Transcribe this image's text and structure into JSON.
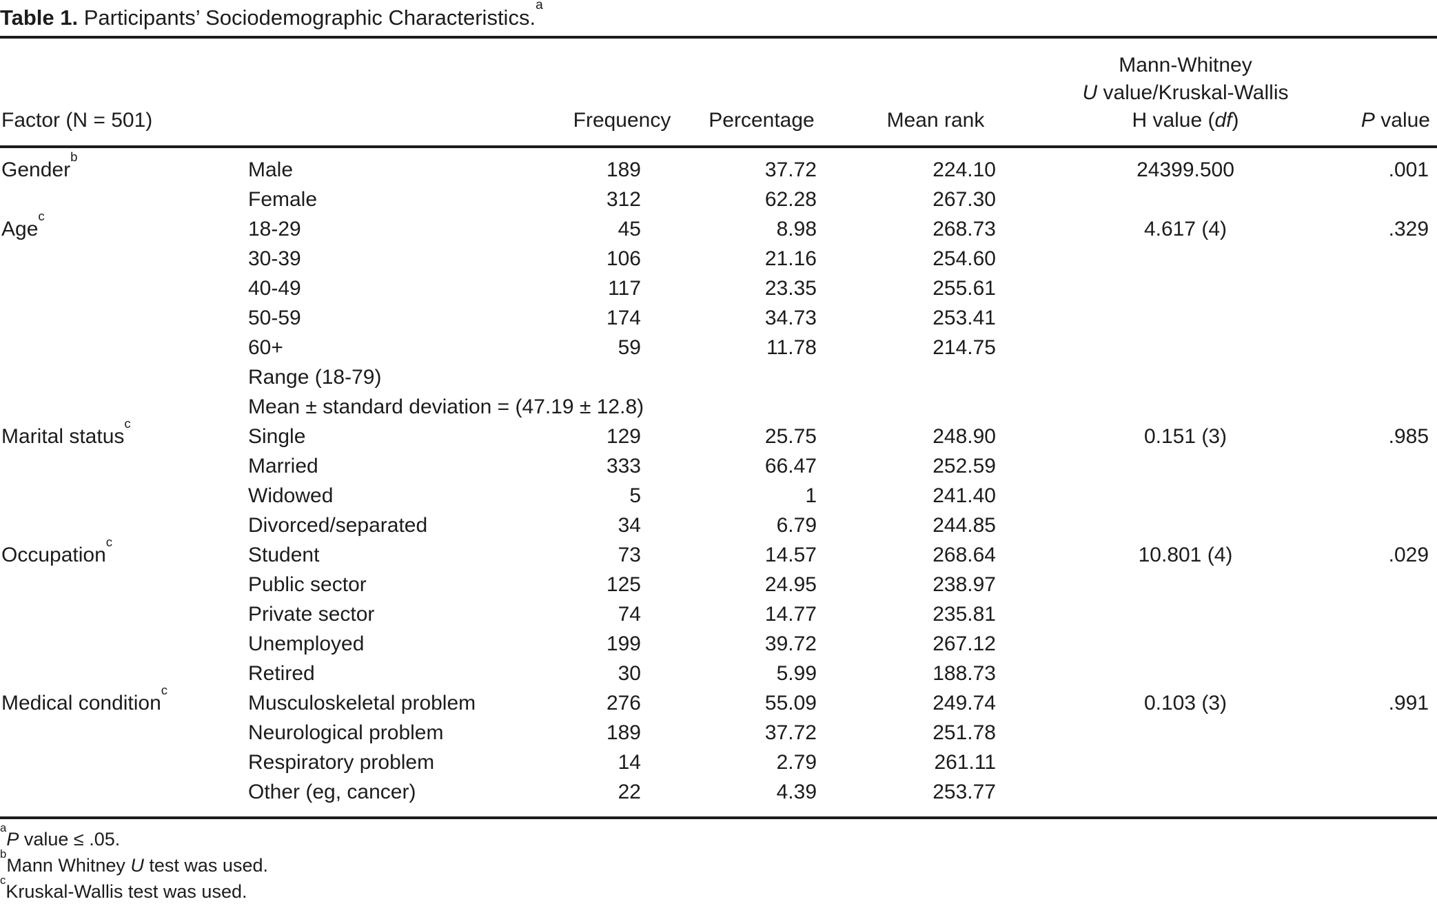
{
  "title": {
    "label": "Table 1.",
    "text": " Participants’ Sociodemographic Characteristics.",
    "footnote_marker": "a"
  },
  "table": {
    "headers": {
      "factor": "Factor (N = 501)",
      "frequency": "Frequency",
      "percentage": "Percentage",
      "mean_rank": "Mean rank",
      "test_line1": "Mann-Whitney",
      "test_line2_italic": "U",
      "test_line2_rest": " value/Kruskal-Wallis",
      "test_line3_pre": "H value (",
      "test_line3_italic": "df",
      "test_line3_post": ")",
      "p_italic": "P",
      "p_rest": " value"
    },
    "rows": [
      {
        "factor": "Gender",
        "factor_sup": "b",
        "category": "Male",
        "frequency": "189",
        "percentage": "37.72",
        "mean_rank": "224.10",
        "test": "24399.500",
        "p_value": ".001"
      },
      {
        "factor": "",
        "factor_sup": "",
        "category": "Female",
        "frequency": "312",
        "percentage": "62.28",
        "mean_rank": "267.30",
        "test": "",
        "p_value": ""
      },
      {
        "factor": "Age",
        "factor_sup": "c",
        "category": "18-29",
        "frequency": "45",
        "percentage": "8.98",
        "mean_rank": "268.73",
        "test": "4.617 (4)",
        "p_value": ".329"
      },
      {
        "factor": "",
        "factor_sup": "",
        "category": "30-39",
        "frequency": "106",
        "percentage": "21.16",
        "mean_rank": "254.60",
        "test": "",
        "p_value": ""
      },
      {
        "factor": "",
        "factor_sup": "",
        "category": "40-49",
        "frequency": "117",
        "percentage": "23.35",
        "mean_rank": "255.61",
        "test": "",
        "p_value": ""
      },
      {
        "factor": "",
        "factor_sup": "",
        "category": "50-59",
        "frequency": "174",
        "percentage": "34.73",
        "mean_rank": "253.41",
        "test": "",
        "p_value": ""
      },
      {
        "factor": "",
        "factor_sup": "",
        "category": "60+",
        "frequency": "59",
        "percentage": "11.78",
        "mean_rank": "214.75",
        "test": "",
        "p_value": ""
      },
      {
        "factor": "",
        "factor_sup": "",
        "category": "Range (18-79)",
        "frequency": "",
        "percentage": "",
        "mean_rank": "",
        "test": "",
        "p_value": ""
      },
      {
        "factor": "",
        "factor_sup": "",
        "category": "Mean ± standard deviation = (47.19 ± 12.8)",
        "frequency": "",
        "percentage": "",
        "mean_rank": "",
        "test": "",
        "p_value": ""
      },
      {
        "factor": "Marital status",
        "factor_sup": "c",
        "category": "Single",
        "frequency": "129",
        "percentage": "25.75",
        "mean_rank": "248.90",
        "test": "0.151 (3)",
        "p_value": ".985"
      },
      {
        "factor": "",
        "factor_sup": "",
        "category": "Married",
        "frequency": "333",
        "percentage": "66.47",
        "mean_rank": "252.59",
        "test": "",
        "p_value": ""
      },
      {
        "factor": "",
        "factor_sup": "",
        "category": "Widowed",
        "frequency": "5",
        "percentage": "1",
        "mean_rank": "241.40",
        "test": "",
        "p_value": ""
      },
      {
        "factor": "",
        "factor_sup": "",
        "category": "Divorced/separated",
        "frequency": "34",
        "percentage": "6.79",
        "mean_rank": "244.85",
        "test": "",
        "p_value": ""
      },
      {
        "factor": "Occupation",
        "factor_sup": "c",
        "category": "Student",
        "frequency": "73",
        "percentage": "14.57",
        "mean_rank": "268.64",
        "test": "10.801 (4)",
        "p_value": ".029"
      },
      {
        "factor": "",
        "factor_sup": "",
        "category": "Public sector",
        "frequency": "125",
        "percentage": "24.95",
        "mean_rank": "238.97",
        "test": "",
        "p_value": ""
      },
      {
        "factor": "",
        "factor_sup": "",
        "category": "Private sector",
        "frequency": "74",
        "percentage": "14.77",
        "mean_rank": "235.81",
        "test": "",
        "p_value": ""
      },
      {
        "factor": "",
        "factor_sup": "",
        "category": "Unemployed",
        "frequency": "199",
        "percentage": "39.72",
        "mean_rank": "267.12",
        "test": "",
        "p_value": ""
      },
      {
        "factor": "",
        "factor_sup": "",
        "category": "Retired",
        "frequency": "30",
        "percentage": "5.99",
        "mean_rank": "188.73",
        "test": "",
        "p_value": ""
      },
      {
        "factor": "Medical condition",
        "factor_sup": "c",
        "category": "Musculoskeletal problem",
        "frequency": "276",
        "percentage": "55.09",
        "mean_rank": "249.74",
        "test": "0.103 (3)",
        "p_value": ".991"
      },
      {
        "factor": "",
        "factor_sup": "",
        "category": "Neurological problem",
        "frequency": "189",
        "percentage": "37.72",
        "mean_rank": "251.78",
        "test": "",
        "p_value": ""
      },
      {
        "factor": "",
        "factor_sup": "",
        "category": "Respiratory problem",
        "frequency": "14",
        "percentage": "2.79",
        "mean_rank": "261.11",
        "test": "",
        "p_value": ""
      },
      {
        "factor": "",
        "factor_sup": "",
        "category": "Other (eg, cancer)",
        "frequency": "22",
        "percentage": "4.39",
        "mean_rank": "253.77",
        "test": "",
        "p_value": ""
      }
    ]
  },
  "footnotes": [
    {
      "marker": "a",
      "pre": "",
      "italic": "P",
      "post": " value ≤ .05."
    },
    {
      "marker": "b",
      "pre": "Mann Whitney ",
      "italic": "U",
      "post": " test was used."
    },
    {
      "marker": "c",
      "pre": "Kruskal-Wallis test was used.",
      "italic": "",
      "post": ""
    }
  ]
}
